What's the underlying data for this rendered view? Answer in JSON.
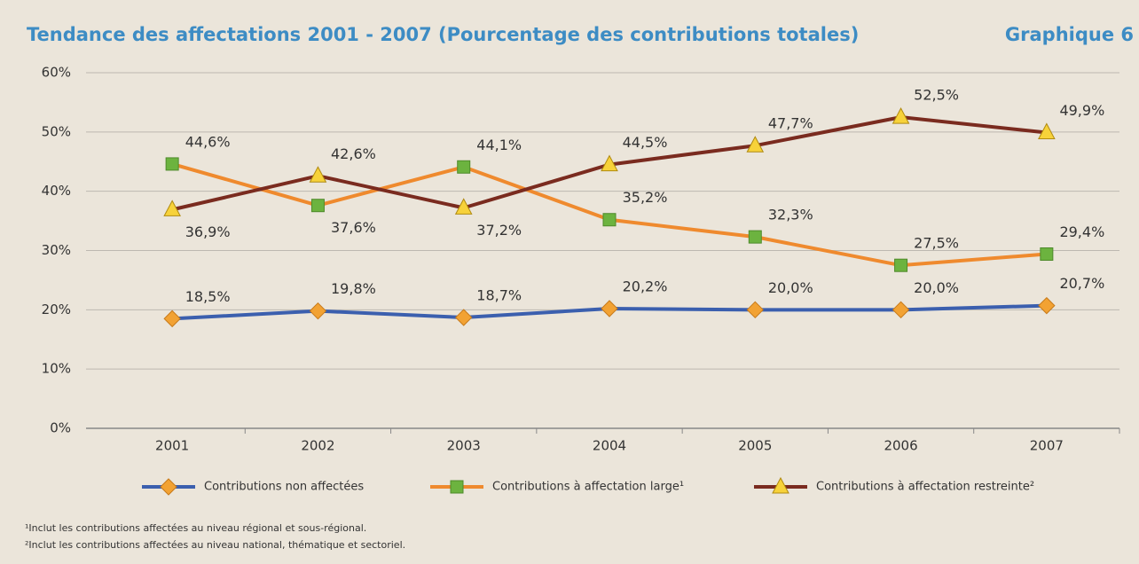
{
  "chart_data": {
    "type": "line",
    "title": "Tendance des affectations 2001 - 2007 (Pourcentage des contributions totales)",
    "subtitle": "Graphique 6",
    "categories": [
      "2001",
      "2002",
      "2003",
      "2004",
      "2005",
      "2006",
      "2007"
    ],
    "series": [
      {
        "name": "Contributions non affectées",
        "color": "#3b5fae",
        "marker": "diamond",
        "marker_color": "#f2a233",
        "values": [
          18.5,
          19.8,
          18.7,
          20.2,
          20.0,
          20.0,
          20.7
        ],
        "value_labels": [
          "18,5%",
          "19,8%",
          "18,7%",
          "20,2%",
          "20,0%",
          "20,0%",
          "20,7%"
        ]
      },
      {
        "name": "Contributions à affectation large¹",
        "color": "#ef8a2e",
        "marker": "square",
        "marker_color": "#6cb33f",
        "values": [
          44.6,
          37.6,
          44.1,
          35.2,
          32.3,
          27.5,
          29.4
        ],
        "value_labels": [
          "44,6%",
          "37,6%",
          "44,1%",
          "35,2%",
          "32,3%",
          "27,5%",
          "29,4%"
        ]
      },
      {
        "name": "Contributions à affectation restreinte²",
        "color": "#7a2b1f",
        "marker": "triangle",
        "marker_color": "#f7d23a",
        "values": [
          36.9,
          42.6,
          37.2,
          44.5,
          47.7,
          52.5,
          49.9
        ],
        "value_labels": [
          "36,9%",
          "42,6%",
          "37,2%",
          "44,5%",
          "47,7%",
          "52,5%",
          "49,9%"
        ]
      }
    ],
    "ylim": [
      0,
      60
    ],
    "yticks": [
      {
        "value": 0,
        "label": "0%"
      },
      {
        "value": 10,
        "label": "10%"
      },
      {
        "value": 20,
        "label": "20%"
      },
      {
        "value": 30,
        "label": "30%"
      },
      {
        "value": 40,
        "label": "40%"
      },
      {
        "value": 50,
        "label": "50%"
      },
      {
        "value": 60,
        "label": "60%"
      }
    ],
    "grid": true,
    "legend": "bottom",
    "footnotes": [
      "¹Inclut les contributions affectées au niveau régional et sous-régional.",
      "²Inclut les contributions affectées au niveau national, thématique et sectoriel."
    ]
  }
}
